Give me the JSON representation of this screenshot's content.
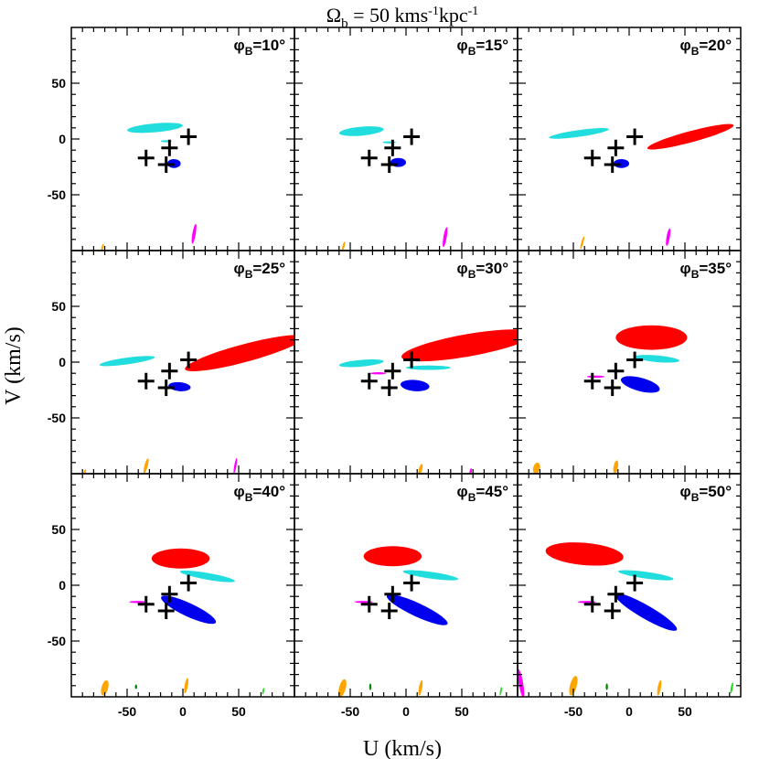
{
  "chart_data": {
    "type": "scatter",
    "title": "Ω_b = 50 kms⁻¹kpc⁻¹",
    "title_parts": {
      "omega": "Ω",
      "sub": "b",
      "rest": " = 50 kms",
      "exp1": "-1",
      "unit2": "kpc",
      "exp2": "-1"
    },
    "xlabel": "U (km/s)",
    "ylabel": "V (km/s)",
    "xlim": [
      -100,
      100
    ],
    "ylim": [
      -100,
      100
    ],
    "xticks": [
      -50,
      0,
      50
    ],
    "yticks": [
      -50,
      0,
      50
    ],
    "grid": false,
    "colors": {
      "red": "#ff0000",
      "blue": "#0000ee",
      "cyan": "#22dddd",
      "magenta": "#ff00ff",
      "orange": "#ffa500",
      "green": "#008800",
      "lightgreen": "#22dd22",
      "cross": "#000000"
    },
    "crosses": [
      [
        5,
        2
      ],
      [
        -12,
        -8
      ],
      [
        -33,
        -17
      ],
      [
        -15,
        -23
      ]
    ],
    "panels": [
      {
        "phi_label": "φ",
        "phi_sub": "B",
        "phi_value": "=10°",
        "blobs": [
          {
            "color": "cyan",
            "cx": -25,
            "cy": 10,
            "rx": 25,
            "ry": 4,
            "rot": 5
          },
          {
            "color": "cyan",
            "cx": -15,
            "cy": -2,
            "rx": 5,
            "ry": 1,
            "rot": 0
          },
          {
            "color": "blue",
            "cx": -8,
            "cy": -22,
            "rx": 6,
            "ry": 4,
            "rot": 0
          },
          {
            "color": "magenta",
            "cx": 10,
            "cy": -85,
            "rx": 1.5,
            "ry": 9,
            "rot": -10
          },
          {
            "color": "orange",
            "cx": -72,
            "cy": -97,
            "rx": 1,
            "ry": 3,
            "rot": -15
          }
        ]
      },
      {
        "phi_label": "φ",
        "phi_sub": "B",
        "phi_value": "=15°",
        "blobs": [
          {
            "color": "cyan",
            "cx": -40,
            "cy": 7,
            "rx": 20,
            "ry": 4,
            "rot": 5
          },
          {
            "color": "cyan",
            "cx": -15,
            "cy": -3,
            "rx": 6,
            "ry": 1,
            "rot": 0
          },
          {
            "color": "blue",
            "cx": -7,
            "cy": -21,
            "rx": 7,
            "ry": 4,
            "rot": 0
          },
          {
            "color": "magenta",
            "cx": 35,
            "cy": -88,
            "rx": 1.5,
            "ry": 9,
            "rot": -10
          },
          {
            "color": "orange",
            "cx": -56,
            "cy": -96,
            "rx": 1,
            "ry": 4,
            "rot": -15
          }
        ]
      },
      {
        "phi_label": "φ",
        "phi_sub": "B",
        "phi_value": "=20°",
        "blobs": [
          {
            "color": "red",
            "cx": 55,
            "cy": 2,
            "rx": 40,
            "ry": 5,
            "rot": 15
          },
          {
            "color": "cyan",
            "cx": -45,
            "cy": 5,
            "rx": 27,
            "ry": 3,
            "rot": 8
          },
          {
            "color": "blue",
            "cx": -7,
            "cy": -22,
            "rx": 7,
            "ry": 4,
            "rot": 0
          },
          {
            "color": "magenta",
            "cx": 35,
            "cy": -88,
            "rx": 1.5,
            "ry": 8,
            "rot": -10
          },
          {
            "color": "orange",
            "cx": -42,
            "cy": -93,
            "rx": 1,
            "ry": 6,
            "rot": -15
          }
        ]
      },
      {
        "phi_label": "φ",
        "phi_sub": "B",
        "phi_value": "=25°",
        "blobs": [
          {
            "color": "red",
            "cx": 55,
            "cy": 8,
            "rx": 55,
            "ry": 8,
            "rot": 15
          },
          {
            "color": "cyan",
            "cx": -50,
            "cy": 1,
            "rx": 25,
            "ry": 3,
            "rot": 8
          },
          {
            "color": "blue",
            "cx": -3,
            "cy": -22,
            "rx": 10,
            "ry": 4,
            "rot": -5
          },
          {
            "color": "magenta",
            "cx": 47,
            "cy": -93,
            "rx": 1,
            "ry": 7,
            "rot": -10
          },
          {
            "color": "orange",
            "cx": -33,
            "cy": -93,
            "rx": 1.5,
            "ry": 7,
            "rot": -15
          },
          {
            "color": "orange",
            "cx": -88,
            "cy": -99,
            "rx": 1,
            "ry": 3,
            "rot": -15
          }
        ]
      },
      {
        "phi_label": "φ",
        "phi_sub": "B",
        "phi_value": "=30°",
        "blobs": [
          {
            "color": "red",
            "cx": 55,
            "cy": 15,
            "rx": 60,
            "ry": 10,
            "rot": 10
          },
          {
            "color": "cyan",
            "cx": -40,
            "cy": -1,
            "rx": 20,
            "ry": 3,
            "rot": 5
          },
          {
            "color": "cyan",
            "cx": 20,
            "cy": -5,
            "rx": 20,
            "ry": 2,
            "rot": 0
          },
          {
            "color": "magenta",
            "cx": -25,
            "cy": -10,
            "rx": 7,
            "ry": 1,
            "rot": 0
          },
          {
            "color": "blue",
            "cx": 8,
            "cy": -21,
            "rx": 13,
            "ry": 5,
            "rot": -5
          },
          {
            "color": "magenta",
            "cx": 58,
            "cy": -98,
            "rx": 1,
            "ry": 3,
            "rot": -10
          },
          {
            "color": "orange",
            "cx": 13,
            "cy": -96,
            "rx": 1.5,
            "ry": 5,
            "rot": -15
          }
        ]
      },
      {
        "phi_label": "φ",
        "phi_sub": "B",
        "phi_value": "=35°",
        "blobs": [
          {
            "color": "red",
            "cx": 20,
            "cy": 22,
            "rx": 32,
            "ry": 11,
            "rot": 0
          },
          {
            "color": "cyan",
            "cx": 25,
            "cy": 3,
            "rx": 20,
            "ry": 3,
            "rot": -5
          },
          {
            "color": "magenta",
            "cx": -30,
            "cy": -13,
            "rx": 8,
            "ry": 1,
            "rot": 0
          },
          {
            "color": "blue",
            "cx": 10,
            "cy": -20,
            "rx": 18,
            "ry": 6,
            "rot": -15
          },
          {
            "color": "orange",
            "cx": -83,
            "cy": -95,
            "rx": 3,
            "ry": 5,
            "rot": -15
          },
          {
            "color": "orange",
            "cx": -12,
            "cy": -94,
            "rx": 2,
            "ry": 6,
            "rot": -10
          }
        ]
      },
      {
        "phi_label": "φ",
        "phi_sub": "B",
        "phi_value": "=40°",
        "blobs": [
          {
            "color": "red",
            "cx": -2,
            "cy": 24,
            "rx": 26,
            "ry": 9,
            "rot": 0
          },
          {
            "color": "cyan",
            "cx": 22,
            "cy": 8,
            "rx": 25,
            "ry": 3,
            "rot": -10
          },
          {
            "color": "magenta",
            "cx": -40,
            "cy": -15,
            "rx": 8,
            "ry": 1,
            "rot": 0
          },
          {
            "color": "blue",
            "cx": 5,
            "cy": -22,
            "rx": 27,
            "ry": 6,
            "rot": -25
          },
          {
            "color": "orange",
            "cx": -70,
            "cy": -92,
            "rx": 3,
            "ry": 7,
            "rot": -15
          },
          {
            "color": "green",
            "cx": -42,
            "cy": -91,
            "rx": 1,
            "ry": 2,
            "rot": 0
          },
          {
            "color": "orange",
            "cx": 3,
            "cy": -90,
            "rx": 1.5,
            "ry": 7,
            "rot": -10
          },
          {
            "color": "lightgreen",
            "cx": 72,
            "cy": -95,
            "rx": 0.8,
            "ry": 3,
            "rot": -10
          }
        ]
      },
      {
        "phi_label": "φ",
        "phi_sub": "B",
        "phi_value": "=45°",
        "blobs": [
          {
            "color": "red",
            "cx": -12,
            "cy": 26,
            "rx": 26,
            "ry": 9,
            "rot": 0
          },
          {
            "color": "cyan",
            "cx": 22,
            "cy": 9,
            "rx": 25,
            "ry": 3,
            "rot": -8
          },
          {
            "color": "magenta",
            "cx": -38,
            "cy": -15,
            "rx": 8,
            "ry": 1,
            "rot": 0
          },
          {
            "color": "blue",
            "cx": 10,
            "cy": -22,
            "rx": 30,
            "ry": 6,
            "rot": -25
          },
          {
            "color": "orange",
            "cx": -57,
            "cy": -92,
            "rx": 3,
            "ry": 8,
            "rot": -15
          },
          {
            "color": "green",
            "cx": -32,
            "cy": -91,
            "rx": 1,
            "ry": 3,
            "rot": 0
          },
          {
            "color": "orange",
            "cx": 13,
            "cy": -92,
            "rx": 1.5,
            "ry": 7,
            "rot": -10
          },
          {
            "color": "lightgreen",
            "cx": 85,
            "cy": -95,
            "rx": 0.8,
            "ry": 4,
            "rot": -10
          }
        ]
      },
      {
        "phi_label": "φ",
        "phi_sub": "B",
        "phi_value": "=50°",
        "blobs": [
          {
            "color": "red",
            "cx": -40,
            "cy": 28,
            "rx": 35,
            "ry": 10,
            "rot": -5
          },
          {
            "color": "cyan",
            "cx": 15,
            "cy": 9,
            "rx": 25,
            "ry": 3,
            "rot": -8
          },
          {
            "color": "magenta",
            "cx": -38,
            "cy": -15,
            "rx": 8,
            "ry": 1,
            "rot": 0
          },
          {
            "color": "blue",
            "cx": 15,
            "cy": -24,
            "rx": 32,
            "ry": 6,
            "rot": -30
          },
          {
            "color": "magenta",
            "cx": -97,
            "cy": -88,
            "rx": 2,
            "ry": 13,
            "rot": 10
          },
          {
            "color": "orange",
            "cx": -50,
            "cy": -90,
            "rx": 3,
            "ry": 9,
            "rot": -15
          },
          {
            "color": "green",
            "cx": -20,
            "cy": -91,
            "rx": 1,
            "ry": 3,
            "rot": 0
          },
          {
            "color": "orange",
            "cx": 27,
            "cy": -92,
            "rx": 1.5,
            "ry": 7,
            "rot": -10
          },
          {
            "color": "lightgreen",
            "cx": 92,
            "cy": -92,
            "rx": 1,
            "ry": 5,
            "rot": -10
          }
        ]
      }
    ]
  }
}
